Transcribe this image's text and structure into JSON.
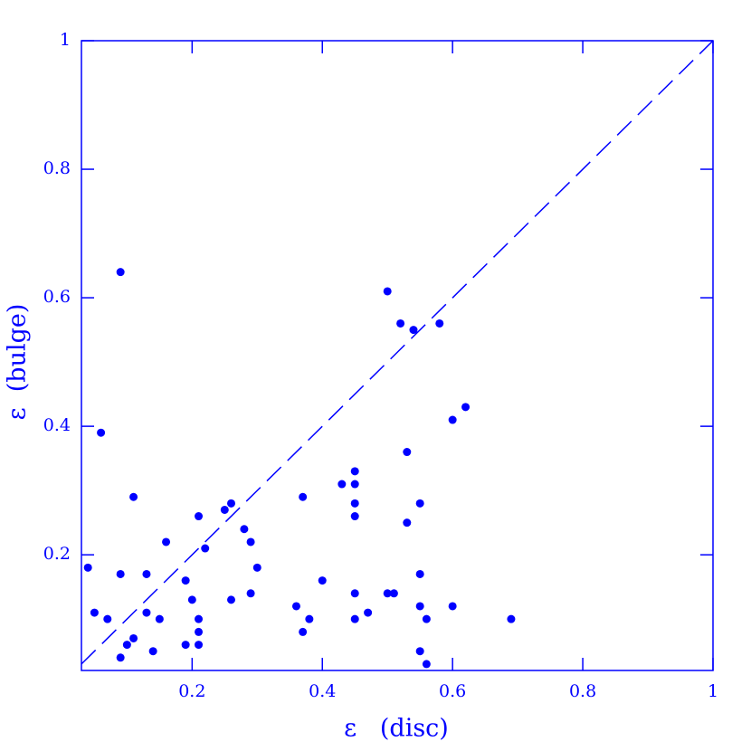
{
  "chart_data": {
    "type": "scatter",
    "x_label": "ε   (disc)",
    "y_label": "ε  (bulge)",
    "color": "#0000ff",
    "xlim": [
      0.03,
      1
    ],
    "ylim": [
      0.02,
      1
    ],
    "xticks": [
      0.2,
      0.4,
      0.6,
      0.8,
      1
    ],
    "yticks": [
      0.2,
      0.4,
      0.6,
      0.8,
      1
    ],
    "diagonal": true,
    "x": [
      0.04,
      0.05,
      0.06,
      0.07,
      0.09,
      0.09,
      0.09,
      0.1,
      0.11,
      0.11,
      0.13,
      0.13,
      0.14,
      0.15,
      0.16,
      0.19,
      0.19,
      0.2,
      0.21,
      0.21,
      0.21,
      0.21,
      0.22,
      0.25,
      0.26,
      0.26,
      0.28,
      0.29,
      0.29,
      0.3,
      0.36,
      0.37,
      0.37,
      0.38,
      0.4,
      0.43,
      0.45,
      0.45,
      0.45,
      0.45,
      0.45,
      0.45,
      0.47,
      0.5,
      0.5,
      0.51,
      0.52,
      0.53,
      0.53,
      0.54,
      0.55,
      0.55,
      0.55,
      0.55,
      0.56,
      0.56,
      0.58,
      0.6,
      0.6,
      0.62,
      0.69
    ],
    "y": [
      0.18,
      0.11,
      0.39,
      0.1,
      0.17,
      0.64,
      0.04,
      0.06,
      0.07,
      0.29,
      0.17,
      0.11,
      0.05,
      0.1,
      0.22,
      0.16,
      0.06,
      0.13,
      0.26,
      0.1,
      0.08,
      0.06,
      0.21,
      0.27,
      0.28,
      0.13,
      0.24,
      0.22,
      0.14,
      0.18,
      0.12,
      0.29,
      0.08,
      0.1,
      0.16,
      0.31,
      0.33,
      0.31,
      0.28,
      0.26,
      0.14,
      0.1,
      0.11,
      0.61,
      0.14,
      0.14,
      0.56,
      0.36,
      0.25,
      0.55,
      0.28,
      0.17,
      0.12,
      0.05,
      0.1,
      0.03,
      0.56,
      0.41,
      0.12,
      0.43,
      0.1
    ]
  }
}
